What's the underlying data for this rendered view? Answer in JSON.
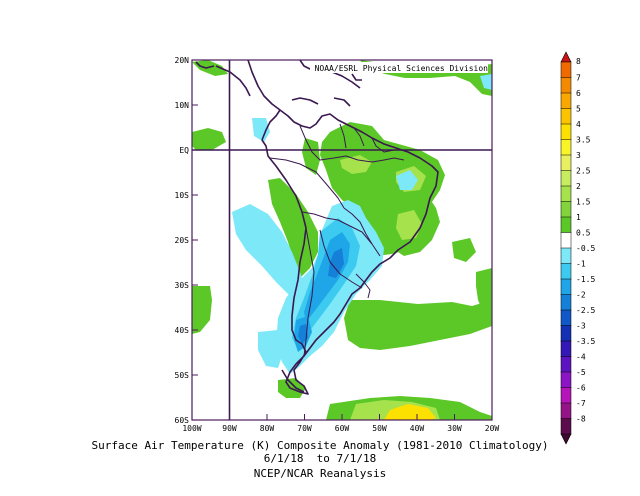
{
  "map": {
    "credit": "NOAA/ESRL Physical Sciences Division",
    "lat_labels": [
      "20N",
      "10N",
      "EQ",
      "10S",
      "20S",
      "30S",
      "40S",
      "50S",
      "60S"
    ],
    "lon_labels": [
      "100W",
      "90W",
      "80W",
      "70W",
      "60W",
      "50W",
      "40W",
      "30W",
      "20W"
    ],
    "lat_range": [
      -60,
      20
    ],
    "lon_range": [
      -100,
      -20
    ],
    "reference_lines": {
      "equator_lat": 0,
      "meridian_lon": -90
    }
  },
  "colorbar": {
    "labels": [
      "8",
      "7",
      "6",
      "5",
      "4",
      "3.5",
      "3",
      "2.5",
      "2",
      "1.5",
      "1",
      "0.5",
      "-0.5",
      "-1",
      "-1.5",
      "-2",
      "-2.5",
      "-3",
      "-3.5",
      "-4",
      "-5",
      "-6",
      "-7",
      "-8"
    ],
    "colors": [
      "#f06a00",
      "#f48a00",
      "#f8a800",
      "#fcc400",
      "#fce000",
      "#f8f428",
      "#e8f060",
      "#c8ec60",
      "#a6e24c",
      "#82d43c",
      "#5cc828",
      "#ffffff",
      "#7ce8f8",
      "#3ccaf0",
      "#1ea6e8",
      "#1480d8",
      "#1058c8",
      "#1430b4",
      "#3418b8",
      "#5c14c0",
      "#8c14c4",
      "#b414b8",
      "#941488",
      "#5c0c4c"
    ],
    "top_arrow_color": "#c81414",
    "bottom_arrow_color": "#3c0a30"
  },
  "caption": {
    "line1": "Surface Air Temperature (K) Composite Anomaly (1981-2010 Climatology)",
    "line2": "6/1/18  to 7/1/18",
    "line3": "NCEP/NCAR Reanalysis"
  },
  "colors": {
    "green": "#5cc828",
    "light_green": "#82d43c",
    "yellow": "#fce000",
    "cyan": "#7ce8f8",
    "light_blue": "#3ccaf0",
    "blue": "#1ea6e8",
    "dark_blue": "#1480d8",
    "coast": "#3a1850",
    "frame": "#4a1a5a"
  }
}
